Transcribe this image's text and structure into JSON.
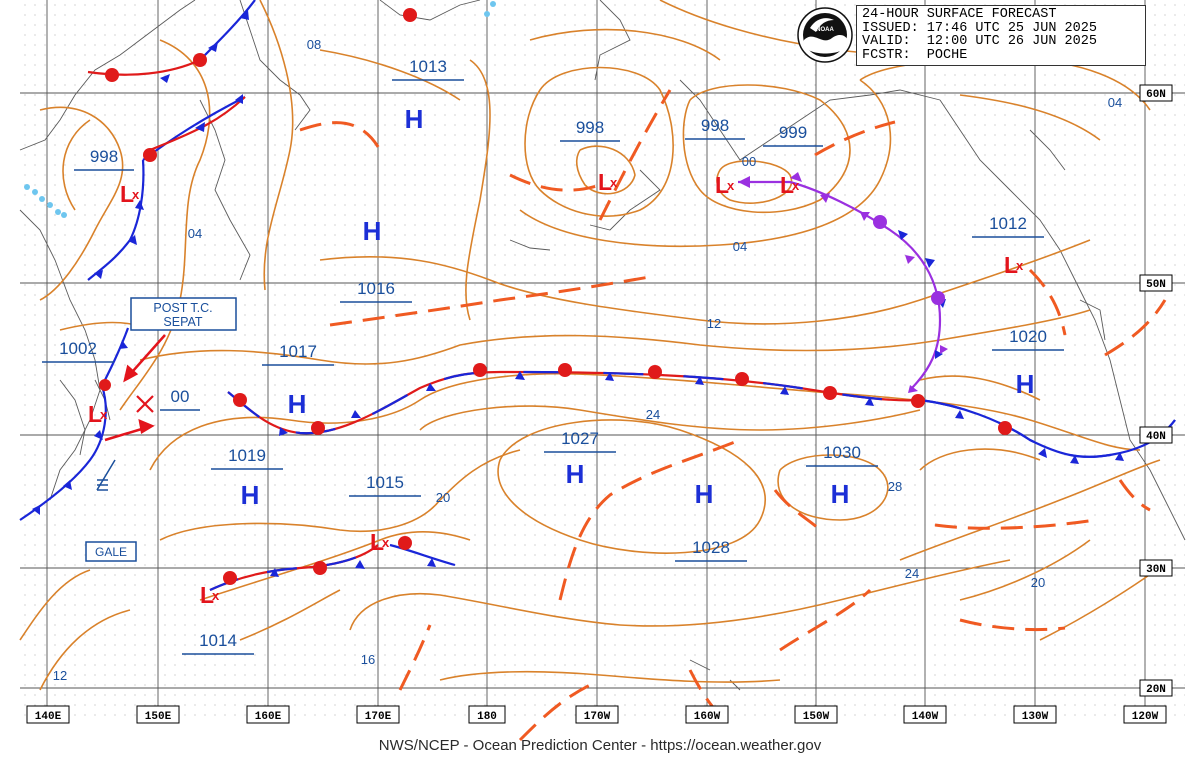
{
  "footer": "NWS/NCEP - Ocean Prediction Center - https://ocean.weather.gov",
  "legend": {
    "title": "24-HOUR SURFACE FORECAST",
    "issued": "ISSUED: 17:46 UTC 25 JUN 2025",
    "valid": "VALID:  12:00 UTC 26 JUN 2025",
    "forecaster": "FCSTR:  POCHE"
  },
  "logo_text": "NOAA",
  "longitude_labels": [
    "140E",
    "150E",
    "160E",
    "170E",
    "180",
    "170W",
    "160W",
    "150W",
    "140W",
    "130W",
    "120W"
  ],
  "latitude_labels": [
    "60N",
    "50N",
    "40N",
    "30N",
    "20N"
  ],
  "pressure_values": {
    "p998_left": "998",
    "p1013": "1013",
    "p998_mid": "998",
    "p998_right": "998",
    "p999": "999",
    "p1016": "1016",
    "p1012": "1012",
    "p1002": "1002",
    "p1017": "1017",
    "p00": "00",
    "p1020": "1020",
    "p1027": "1027",
    "p1019": "1019",
    "p1015": "1015",
    "p1030": "1030",
    "p1028": "1028",
    "p1014": "1014"
  },
  "isobar_labels": {
    "l08": "08",
    "l04_a": "04",
    "l04_b": "04",
    "l04_c": "04",
    "l00": "00",
    "l12_a": "12",
    "l12_b": "12",
    "l24_a": "24",
    "l24_b": "24",
    "l20_a": "20",
    "l20_b": "20",
    "l28": "28",
    "l16": "16"
  },
  "annotations": {
    "storm_label_line1": "POST T.C.",
    "storm_label_line2": "SEPAT",
    "gale": "GALE"
  },
  "high_symbol": "H",
  "low_symbol": "L",
  "colors": {
    "isobar": "#d9822b",
    "trough": "#f05a22",
    "high_blue": "#1c2fd6",
    "low_red": "#e3141c",
    "label_blue": "#1a4f9c",
    "occluded": "#9a30e0",
    "cold_front": "#1a26d8",
    "warm_front": "#e01a1a",
    "grid": "#555555",
    "coast": "#555555"
  }
}
